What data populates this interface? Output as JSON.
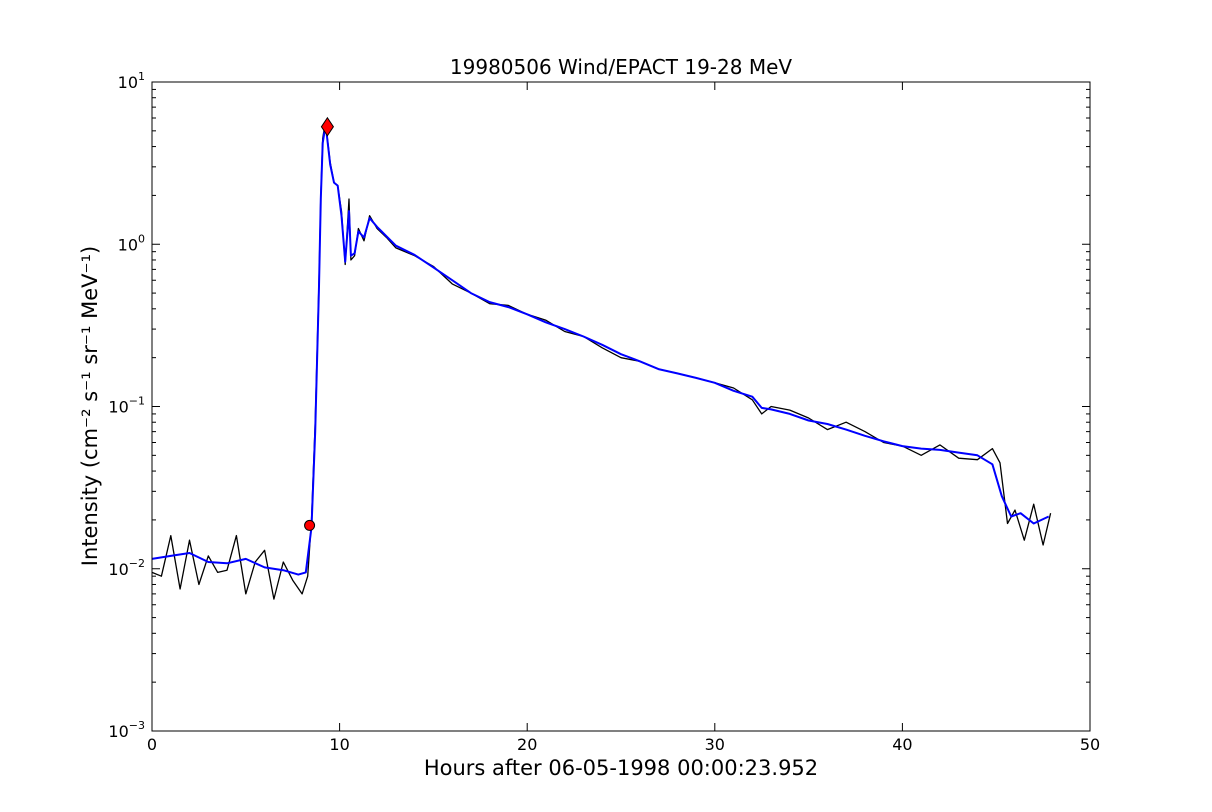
{
  "chart_data": {
    "type": "line",
    "title": "19980506 Wind/EPACT 19-28 MeV",
    "xlabel": "Hours after 06-05-1998 00:00:23.952",
    "ylabel": "Intensity (cm⁻² s⁻¹ sr⁻¹ MeV⁻¹)",
    "xlim": [
      0,
      50
    ],
    "ylim": [
      0.001,
      10
    ],
    "yscale": "log",
    "grid": false,
    "xticks": [
      {
        "value": 0,
        "label": "0"
      },
      {
        "value": 10,
        "label": "10"
      },
      {
        "value": 20,
        "label": "20"
      },
      {
        "value": 30,
        "label": "30"
      },
      {
        "value": 40,
        "label": "40"
      },
      {
        "value": 50,
        "label": "50"
      }
    ],
    "yticks": [
      {
        "value": 0.001,
        "base": "10",
        "exp": "−3"
      },
      {
        "value": 0.01,
        "base": "10",
        "exp": "−2"
      },
      {
        "value": 0.1,
        "base": "10",
        "exp": "−1"
      },
      {
        "value": 1,
        "base": "10",
        "exp": "0"
      },
      {
        "value": 10,
        "base": "10",
        "exp": "1"
      }
    ],
    "series": [
      {
        "style": "raw",
        "color": "#000000",
        "x": [
          0,
          0.5,
          1,
          1.5,
          2,
          2.5,
          3,
          3.5,
          4,
          4.5,
          5,
          5.5,
          6,
          6.5,
          7,
          7.5,
          8,
          8.3,
          8.5,
          8.7,
          8.9,
          9.0,
          9.1,
          9.2,
          9.3,
          9.5,
          9.7,
          9.9,
          10.1,
          10.3,
          10.5,
          10.6,
          10.8,
          11.0,
          11.3,
          11.6,
          12.0,
          12.5,
          13,
          14,
          15,
          16,
          17,
          18,
          19,
          20,
          21,
          22,
          23,
          24,
          25,
          26,
          27,
          28,
          29,
          30,
          31,
          32,
          32.5,
          33,
          34,
          35,
          36,
          37,
          38,
          39,
          40,
          41,
          42,
          43,
          44,
          44.8,
          45.2,
          45.6,
          46,
          46.5,
          47,
          47.5,
          47.9
        ],
        "values": [
          0.0095,
          0.009,
          0.016,
          0.0075,
          0.015,
          0.008,
          0.012,
          0.0095,
          0.0098,
          0.016,
          0.007,
          0.011,
          0.013,
          0.0065,
          0.011,
          0.0085,
          0.007,
          0.009,
          0.02,
          0.08,
          0.6,
          2.0,
          4.5,
          5.3,
          5.0,
          3.2,
          2.4,
          2.3,
          1.6,
          0.75,
          1.9,
          0.8,
          0.85,
          1.25,
          1.05,
          1.5,
          1.25,
          1.1,
          0.95,
          0.85,
          0.73,
          0.57,
          0.5,
          0.43,
          0.42,
          0.37,
          0.34,
          0.29,
          0.27,
          0.23,
          0.2,
          0.19,
          0.17,
          0.16,
          0.15,
          0.14,
          0.13,
          0.11,
          0.09,
          0.1,
          0.095,
          0.085,
          0.072,
          0.08,
          0.07,
          0.06,
          0.057,
          0.05,
          0.058,
          0.048,
          0.047,
          0.055,
          0.045,
          0.019,
          0.023,
          0.015,
          0.025,
          0.014,
          0.022
        ]
      },
      {
        "style": "smoothed",
        "color": "#0000ff",
        "x": [
          0,
          1,
          2,
          3,
          4,
          5,
          6,
          7,
          7.8,
          8.2,
          8.5,
          8.7,
          8.9,
          9.0,
          9.1,
          9.2,
          9.3,
          9.5,
          9.7,
          9.9,
          10.1,
          10.3,
          10.5,
          10.6,
          10.8,
          11.0,
          11.3,
          11.6,
          12.0,
          12.5,
          13,
          14,
          15,
          16,
          17,
          18,
          19,
          20,
          21,
          22,
          23,
          24,
          25,
          26,
          27,
          28,
          29,
          30,
          31,
          32,
          32.5,
          33,
          34,
          35,
          36,
          37,
          38,
          39,
          40,
          41,
          42,
          43,
          44,
          44.8,
          45.3,
          45.8,
          46.3,
          47,
          47.8
        ],
        "values": [
          0.0115,
          0.012,
          0.0125,
          0.011,
          0.0108,
          0.0115,
          0.0102,
          0.0098,
          0.0092,
          0.0095,
          0.018,
          0.07,
          0.55,
          1.9,
          4.2,
          5.0,
          4.9,
          3.1,
          2.4,
          2.3,
          1.5,
          0.78,
          1.6,
          0.85,
          0.88,
          1.2,
          1.1,
          1.45,
          1.28,
          1.12,
          0.98,
          0.86,
          0.72,
          0.6,
          0.5,
          0.44,
          0.41,
          0.37,
          0.33,
          0.3,
          0.27,
          0.24,
          0.21,
          0.19,
          0.17,
          0.16,
          0.15,
          0.14,
          0.125,
          0.115,
          0.098,
          0.096,
          0.09,
          0.082,
          0.078,
          0.072,
          0.066,
          0.061,
          0.057,
          0.055,
          0.054,
          0.052,
          0.05,
          0.044,
          0.028,
          0.021,
          0.022,
          0.019,
          0.021
        ]
      }
    ],
    "markers": [
      {
        "shape": "diamond",
        "color": "#ff0000",
        "x": 9.35,
        "y": 5.3
      },
      {
        "shape": "circle",
        "color": "#ff0000",
        "x": 8.4,
        "y": 0.0185
      }
    ]
  }
}
